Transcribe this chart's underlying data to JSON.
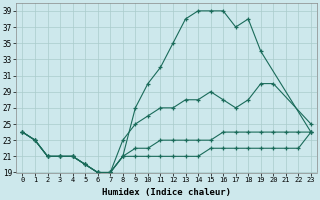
{
  "bg_color": "#cde8ec",
  "grid_color": "#aacccc",
  "line_color": "#1a6b5a",
  "xlabel": "Humidex (Indice chaleur)",
  "xlim": [
    -0.5,
    23.5
  ],
  "ylim": [
    19,
    40
  ],
  "xticks": [
    0,
    1,
    2,
    3,
    4,
    5,
    6,
    7,
    8,
    9,
    10,
    11,
    12,
    13,
    14,
    15,
    16,
    17,
    18,
    19,
    20,
    21,
    22,
    23
  ],
  "yticks": [
    19,
    21,
    23,
    25,
    27,
    29,
    31,
    33,
    35,
    37,
    39
  ],
  "curves": [
    {
      "x": [
        0,
        1,
        2,
        3,
        4,
        5,
        6,
        7,
        8,
        9,
        10,
        11,
        12,
        13,
        14,
        15,
        16,
        17,
        18,
        19,
        23
      ],
      "y": [
        24,
        23,
        21,
        21,
        21,
        20,
        19,
        19,
        21,
        27,
        30,
        32,
        35,
        38,
        39,
        39,
        39,
        37,
        38,
        34,
        24
      ]
    },
    {
      "x": [
        0,
        1,
        2,
        3,
        4,
        5,
        6,
        7,
        8,
        9,
        10,
        11,
        12,
        13,
        14,
        15,
        16,
        17,
        18,
        19,
        20,
        23
      ],
      "y": [
        24,
        23,
        21,
        21,
        21,
        20,
        19,
        19,
        23,
        25,
        26,
        27,
        27,
        28,
        28,
        29,
        28,
        27,
        28,
        30,
        30,
        25
      ]
    },
    {
      "x": [
        0,
        1,
        2,
        3,
        4,
        5,
        6,
        7,
        8,
        9,
        10,
        11,
        12,
        13,
        14,
        15,
        16,
        17,
        18,
        19,
        20,
        21,
        22,
        23
      ],
      "y": [
        24,
        23,
        21,
        21,
        21,
        20,
        19,
        19,
        21,
        22,
        22,
        23,
        23,
        23,
        23,
        23,
        24,
        24,
        24,
        24,
        24,
        24,
        24,
        24
      ]
    },
    {
      "x": [
        0,
        1,
        2,
        3,
        4,
        5,
        6,
        7,
        8,
        9,
        10,
        11,
        12,
        13,
        14,
        15,
        16,
        17,
        18,
        19,
        20,
        21,
        22,
        23
      ],
      "y": [
        24,
        23,
        21,
        21,
        21,
        20,
        19,
        19,
        21,
        21,
        21,
        21,
        21,
        21,
        21,
        22,
        22,
        22,
        22,
        22,
        22,
        22,
        22,
        24
      ]
    }
  ]
}
